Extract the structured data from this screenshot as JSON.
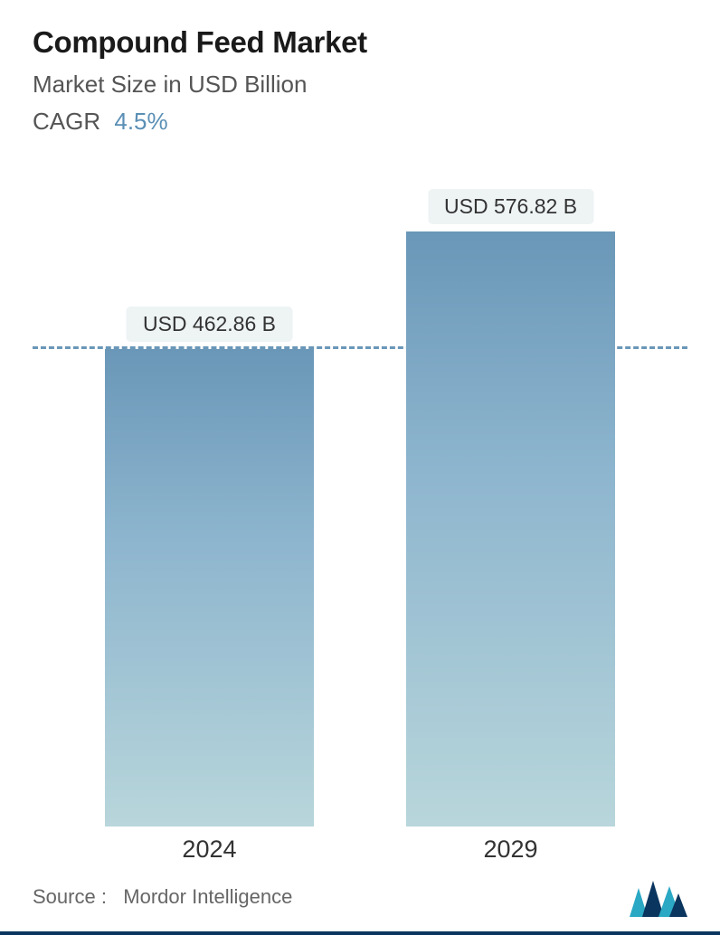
{
  "header": {
    "title": "Compound Feed Market",
    "subtitle": "Market Size in USD Billion",
    "cagr_label": "CAGR",
    "cagr_value": "4.5%"
  },
  "chart": {
    "type": "bar",
    "background_color": "#ffffff",
    "bar_gradient_top": "#6a97b8",
    "bar_gradient_mid": "#8db5ce",
    "bar_gradient_bottom": "#b8d6db",
    "dashed_line_color": "#6a97b8",
    "value_label_bg": "#eef3f4",
    "value_label_color": "#333333",
    "ylim": [
      0,
      600
    ],
    "reference_line_value": 462.86,
    "bars": [
      {
        "category": "2024",
        "value": 462.86,
        "display_label": "USD 462.86 B",
        "center_pct": 27,
        "width_pct": 32
      },
      {
        "category": "2029",
        "value": 576.82,
        "display_label": "USD 576.82 B",
        "center_pct": 73,
        "width_pct": 32
      }
    ],
    "x_label_fontsize": 27,
    "value_label_fontsize": 23,
    "title_fontsize": 33,
    "subtitle_fontsize": 26
  },
  "footer": {
    "source_label": "Source :",
    "source_name": "Mordor Intelligence",
    "logo_colors": {
      "dark": "#0a355e",
      "accent": "#2aa8c4"
    }
  }
}
